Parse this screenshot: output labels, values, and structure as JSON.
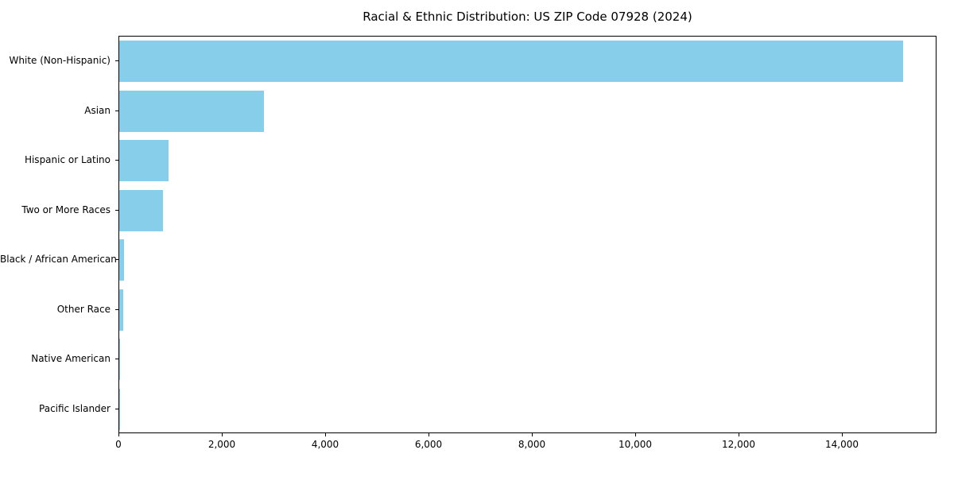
{
  "chart_data": {
    "type": "bar",
    "orientation": "horizontal",
    "title": "Racial & Ethnic Distribution: US ZIP Code 07928 (2024)",
    "categories": [
      "White (Non-Hispanic)",
      "Asian",
      "Hispanic or Latino",
      "Two or More Races",
      "Black / African American",
      "Other Race",
      "Native American",
      "Pacific Islander"
    ],
    "values": [
      15200,
      2800,
      950,
      850,
      100,
      80,
      12,
      4
    ],
    "xlabel": "",
    "ylabel": "",
    "xlim": [
      0,
      15830
    ],
    "xticks": [
      0,
      2000,
      4000,
      6000,
      8000,
      10000,
      12000,
      14000
    ],
    "bar_color": "#87CEEB",
    "grid": false,
    "legend": "none"
  }
}
